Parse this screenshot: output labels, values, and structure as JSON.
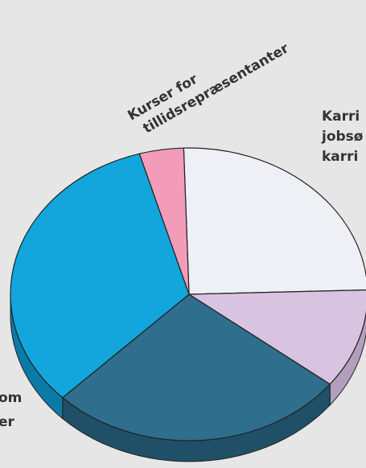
{
  "chart_data": {
    "type": "pie",
    "categories": [
      [
        "Karri",
        "jobsø",
        "karri"
      ],
      null,
      null,
      [
        "om",
        "er"
      ],
      [
        "Kurser for",
        "tillidsrepræsentanter"
      ]
    ],
    "values": [
      25,
      11,
      27,
      33,
      4
    ],
    "colors": [
      "#efeff6",
      "#d8c4e0",
      "#2f6e8d",
      "#12a6dc",
      "#f39cba"
    ],
    "side_colors": [
      "#c8c8d2",
      "#b39fbd",
      "#1f5068",
      "#0b7aa6",
      "#c97c97"
    ]
  }
}
